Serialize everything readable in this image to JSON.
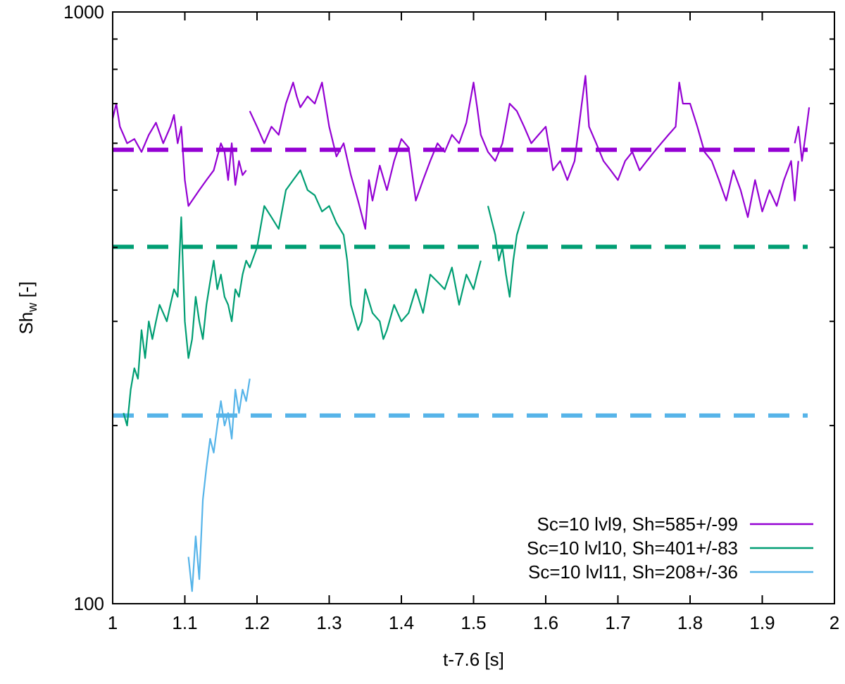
{
  "chart_data": {
    "type": "line",
    "xlabel": "t-7.6 [s]",
    "ylabel_main": "Sh",
    "ylabel_sub": "w",
    "ylabel_suffix": " [-]",
    "x_scale": "linear",
    "y_scale": "log",
    "xlim": [
      1,
      2
    ],
    "ylim": [
      100,
      1000
    ],
    "x_ticks": [
      {
        "value": 1.0,
        "label": "1"
      },
      {
        "value": 1.1,
        "label": "1.1"
      },
      {
        "value": 1.2,
        "label": "1.2"
      },
      {
        "value": 1.3,
        "label": "1.3"
      },
      {
        "value": 1.4,
        "label": "1.4"
      },
      {
        "value": 1.5,
        "label": "1.5"
      },
      {
        "value": 1.6,
        "label": "1.6"
      },
      {
        "value": 1.7,
        "label": "1.7"
      },
      {
        "value": 1.8,
        "label": "1.8"
      },
      {
        "value": 1.9,
        "label": "1.9"
      },
      {
        "value": 2.0,
        "label": "2"
      }
    ],
    "y_ticks_major": [
      {
        "value": 100,
        "label": "100"
      },
      {
        "value": 1000,
        "label": "1000"
      }
    ],
    "y_ticks_minor": [
      200,
      300,
      400,
      500,
      600,
      700,
      800,
      900
    ],
    "grid": false,
    "legend_position": "bottom-right",
    "series": [
      {
        "name": "Sc=10 lvl9, Sh=585+/-99",
        "color": "#9400d3",
        "mean": 585,
        "segments": [
          [
            [
              1.0,
              660
            ],
            [
              1.005,
              700
            ],
            [
              1.01,
              640
            ],
            [
              1.015,
              620
            ],
            [
              1.02,
              600
            ],
            [
              1.03,
              610
            ],
            [
              1.04,
              580
            ],
            [
              1.05,
              620
            ],
            [
              1.06,
              650
            ],
            [
              1.07,
              600
            ],
            [
              1.08,
              640
            ],
            [
              1.085,
              670
            ],
            [
              1.09,
              600
            ],
            [
              1.095,
              640
            ],
            [
              1.1,
              520
            ],
            [
              1.105,
              470
            ],
            [
              1.11,
              480
            ],
            [
              1.12,
              500
            ],
            [
              1.13,
              520
            ],
            [
              1.14,
              540
            ],
            [
              1.15,
              600
            ],
            [
              1.155,
              580
            ],
            [
              1.16,
              520
            ],
            [
              1.165,
              600
            ],
            [
              1.17,
              510
            ],
            [
              1.175,
              560
            ],
            [
              1.18,
              530
            ],
            [
              1.185,
              540
            ]
          ],
          [
            [
              1.19,
              680
            ],
            [
              1.2,
              640
            ],
            [
              1.21,
              600
            ],
            [
              1.22,
              640
            ],
            [
              1.23,
              620
            ],
            [
              1.24,
              700
            ],
            [
              1.25,
              760
            ],
            [
              1.255,
              720
            ],
            [
              1.26,
              690
            ],
            [
              1.27,
              720
            ],
            [
              1.28,
              700
            ],
            [
              1.29,
              760
            ],
            [
              1.3,
              640
            ],
            [
              1.31,
              570
            ],
            [
              1.32,
              600
            ],
            [
              1.33,
              530
            ],
            [
              1.34,
              480
            ],
            [
              1.35,
              430
            ],
            [
              1.355,
              520
            ],
            [
              1.36,
              480
            ],
            [
              1.37,
              550
            ],
            [
              1.38,
              500
            ],
            [
              1.39,
              560
            ],
            [
              1.4,
              610
            ],
            [
              1.41,
              590
            ],
            [
              1.42,
              480
            ],
            [
              1.43,
              520
            ],
            [
              1.44,
              560
            ],
            [
              1.45,
              600
            ],
            [
              1.46,
              580
            ],
            [
              1.47,
              620
            ],
            [
              1.48,
              600
            ],
            [
              1.49,
              650
            ],
            [
              1.5,
              760
            ],
            [
              1.505,
              690
            ],
            [
              1.51,
              620
            ],
            [
              1.52,
              580
            ],
            [
              1.53,
              560
            ],
            [
              1.54,
              600
            ],
            [
              1.55,
              700
            ],
            [
              1.56,
              680
            ],
            [
              1.57,
              640
            ],
            [
              1.58,
              600
            ],
            [
              1.59,
              620
            ],
            [
              1.6,
              640
            ],
            [
              1.61,
              540
            ],
            [
              1.62,
              560
            ],
            [
              1.63,
              520
            ],
            [
              1.64,
              560
            ],
            [
              1.65,
              700
            ],
            [
              1.655,
              780
            ],
            [
              1.66,
              640
            ],
            [
              1.67,
              600
            ],
            [
              1.68,
              560
            ],
            [
              1.69,
              540
            ],
            [
              1.7,
              520
            ],
            [
              1.71,
              560
            ],
            [
              1.72,
              580
            ],
            [
              1.73,
              540
            ],
            [
              1.74,
              560
            ],
            [
              1.75,
              580
            ],
            [
              1.76,
              600
            ],
            [
              1.77,
              620
            ],
            [
              1.78,
              640
            ],
            [
              1.785,
              760
            ],
            [
              1.79,
              700
            ],
            [
              1.8,
              700
            ],
            [
              1.81,
              640
            ],
            [
              1.82,
              580
            ],
            [
              1.83,
              560
            ],
            [
              1.84,
              520
            ],
            [
              1.85,
              480
            ],
            [
              1.86,
              540
            ],
            [
              1.87,
              500
            ],
            [
              1.88,
              450
            ],
            [
              1.89,
              520
            ],
            [
              1.9,
              460
            ],
            [
              1.91,
              500
            ],
            [
              1.92,
              470
            ],
            [
              1.93,
              520
            ],
            [
              1.94,
              560
            ],
            [
              1.945,
              480
            ],
            [
              1.95,
              560
            ]
          ],
          [
            [
              1.945,
              600
            ],
            [
              1.95,
              640
            ],
            [
              1.955,
              560
            ],
            [
              1.96,
              620
            ],
            [
              1.965,
              690
            ]
          ]
        ]
      },
      {
        "name": "Sc=10 lvl10, Sh=401+/-83",
        "color": "#009e73",
        "mean": 401,
        "segments": [
          [
            [
              1.015,
              210
            ],
            [
              1.02,
              200
            ],
            [
              1.025,
              230
            ],
            [
              1.03,
              250
            ],
            [
              1.035,
              240
            ],
            [
              1.04,
              290
            ],
            [
              1.045,
              260
            ],
            [
              1.05,
              300
            ],
            [
              1.055,
              280
            ],
            [
              1.06,
              300
            ],
            [
              1.065,
              320
            ],
            [
              1.07,
              310
            ],
            [
              1.075,
              300
            ],
            [
              1.08,
              320
            ],
            [
              1.085,
              340
            ],
            [
              1.09,
              330
            ],
            [
              1.095,
              450
            ],
            [
              1.1,
              300
            ],
            [
              1.105,
              260
            ],
            [
              1.11,
              280
            ],
            [
              1.115,
              330
            ],
            [
              1.12,
              300
            ],
            [
              1.125,
              280
            ],
            [
              1.13,
              320
            ],
            [
              1.135,
              350
            ],
            [
              1.14,
              380
            ],
            [
              1.145,
              340
            ],
            [
              1.15,
              360
            ],
            [
              1.155,
              330
            ],
            [
              1.16,
              320
            ],
            [
              1.165,
              300
            ],
            [
              1.17,
              340
            ],
            [
              1.175,
              330
            ],
            [
              1.18,
              360
            ],
            [
              1.185,
              380
            ],
            [
              1.19,
              370
            ],
            [
              1.2,
              400
            ],
            [
              1.21,
              470
            ],
            [
              1.22,
              450
            ],
            [
              1.23,
              430
            ],
            [
              1.24,
              500
            ],
            [
              1.25,
              520
            ],
            [
              1.26,
              540
            ],
            [
              1.27,
              500
            ],
            [
              1.28,
              490
            ],
            [
              1.29,
              460
            ],
            [
              1.3,
              470
            ],
            [
              1.31,
              440
            ],
            [
              1.32,
              420
            ],
            [
              1.325,
              380
            ],
            [
              1.33,
              320
            ],
            [
              1.34,
              290
            ],
            [
              1.345,
              300
            ],
            [
              1.35,
              340
            ],
            [
              1.36,
              310
            ],
            [
              1.37,
              300
            ],
            [
              1.375,
              280
            ],
            [
              1.38,
              290
            ],
            [
              1.39,
              320
            ],
            [
              1.4,
              300
            ],
            [
              1.41,
              310
            ],
            [
              1.42,
              340
            ],
            [
              1.43,
              310
            ],
            [
              1.44,
              360
            ],
            [
              1.45,
              350
            ],
            [
              1.46,
              340
            ],
            [
              1.47,
              370
            ],
            [
              1.48,
              320
            ],
            [
              1.49,
              360
            ],
            [
              1.5,
              340
            ],
            [
              1.505,
              360
            ],
            [
              1.51,
              380
            ]
          ],
          [
            [
              1.52,
              470
            ],
            [
              1.53,
              420
            ],
            [
              1.535,
              380
            ],
            [
              1.54,
              400
            ],
            [
              1.545,
              360
            ],
            [
              1.55,
              330
            ],
            [
              1.555,
              380
            ],
            [
              1.56,
              420
            ],
            [
              1.565,
              440
            ],
            [
              1.57,
              460
            ]
          ]
        ]
      },
      {
        "name": "Sc=10 lvl11, Sh=208+/-36",
        "color": "#56b4e9",
        "mean": 208,
        "segments": [
          [
            [
              1.105,
              120
            ],
            [
              1.11,
              105
            ],
            [
              1.115,
              130
            ],
            [
              1.12,
              110
            ],
            [
              1.125,
              150
            ],
            [
              1.13,
              170
            ],
            [
              1.135,
              190
            ],
            [
              1.14,
              180
            ],
            [
              1.145,
              200
            ],
            [
              1.15,
              220
            ],
            [
              1.155,
              200
            ],
            [
              1.16,
              210
            ],
            [
              1.165,
              190
            ],
            [
              1.17,
              230
            ],
            [
              1.175,
              210
            ],
            [
              1.18,
              230
            ],
            [
              1.185,
              220
            ],
            [
              1.19,
              240
            ]
          ]
        ]
      }
    ]
  }
}
